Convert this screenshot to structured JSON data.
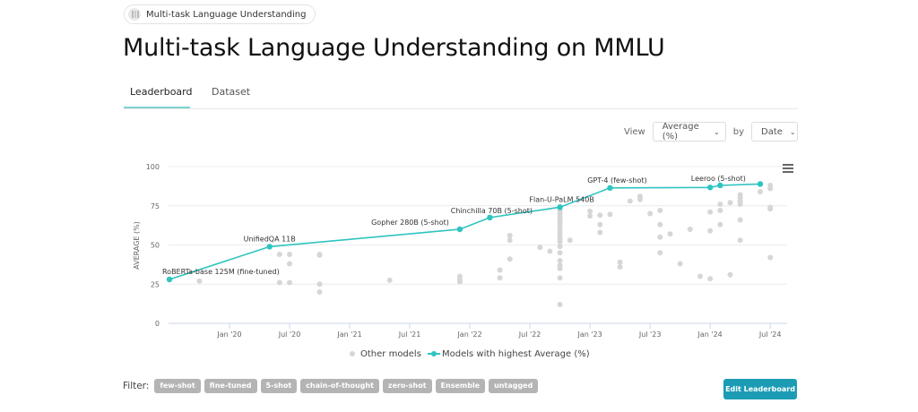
{
  "breadcrumb": {
    "label": "Multi-task Language Understanding",
    "icon": "task-thumbnail-icon"
  },
  "page": {
    "title": "Multi-task Language Understanding on MMLU"
  },
  "tabs": [
    {
      "label": "Leaderboard",
      "active": true
    },
    {
      "label": "Dataset",
      "active": false
    }
  ],
  "controls": {
    "view_label": "View",
    "view_value": "Average (%)",
    "by_label": "by",
    "by_value": "Date"
  },
  "legend": {
    "other": "Other models",
    "best": "Models with highest Average (%)"
  },
  "filter": {
    "label": "Filter:",
    "tags": [
      "few-shot",
      "fine-tuned",
      "5-shot",
      "chain-of-thought",
      "zero-shot",
      "Ensemble",
      "untagged"
    ]
  },
  "actions": {
    "edit_label": "Edit Leaderboard"
  },
  "colors": {
    "accent": "#2ec4c0",
    "other_points": "#d6d6d6",
    "button": "#1c9cb4",
    "tag": "#b4b4b4"
  },
  "chart_data": {
    "type": "scatter",
    "title": "",
    "xlabel": "",
    "ylabel": "AVERAGE (%)",
    "ylim": [
      0,
      100
    ],
    "yticks": [
      0,
      25,
      50,
      75,
      100
    ],
    "xticks": [
      "Jan '20",
      "Jul '20",
      "Jan '21",
      "Jul '21",
      "Jan '22",
      "Jul '22",
      "Jan '23",
      "Jul '23",
      "Jan '24",
      "Jul '24"
    ],
    "grid": true,
    "legend_position": "bottom",
    "series": [
      {
        "name": "Models with highest Average (%)",
        "kind": "line+markers",
        "points": [
          {
            "date": "2019-07",
            "value": 28.0,
            "label": "RoBERTa-base 125M (fine-tuned)"
          },
          {
            "date": "2020-05",
            "value": 48.9,
            "label": "UnifiedQA 11B"
          },
          {
            "date": "2021-12",
            "value": 60.0,
            "label": "Gopher 280B (5-shot)"
          },
          {
            "date": "2022-03",
            "value": 67.5,
            "label": "Chinchilla 70B (5-shot)"
          },
          {
            "date": "2022-10",
            "value": 74.1,
            "label": "Flan-U-PaLM 540B"
          },
          {
            "date": "2023-03",
            "value": 86.4,
            "label": "GPT-4 (few-shot)"
          },
          {
            "date": "2024-01",
            "value": 86.7,
            "label": ""
          },
          {
            "date": "2024-02",
            "value": 88.0,
            "label": "Leeroo (5-shot)"
          },
          {
            "date": "2024-06",
            "value": 88.9,
            "label": ""
          }
        ]
      },
      {
        "name": "Other models",
        "kind": "markers",
        "points": [
          {
            "date": "2019-10",
            "value": 27.0
          },
          {
            "date": "2020-06",
            "value": 44.0
          },
          {
            "date": "2020-06",
            "value": 26.0
          },
          {
            "date": "2020-07",
            "value": 44.0
          },
          {
            "date": "2020-07",
            "value": 38.0
          },
          {
            "date": "2020-07",
            "value": 26.0
          },
          {
            "date": "2020-10",
            "value": 44.0
          },
          {
            "date": "2020-10",
            "value": 43.5
          },
          {
            "date": "2020-10",
            "value": 25.0
          },
          {
            "date": "2020-10",
            "value": 20.0
          },
          {
            "date": "2021-05",
            "value": 27.5
          },
          {
            "date": "2021-12",
            "value": 30.0
          },
          {
            "date": "2021-12",
            "value": 28.0
          },
          {
            "date": "2021-12",
            "value": 26.5
          },
          {
            "date": "2022-04",
            "value": 34.0
          },
          {
            "date": "2022-04",
            "value": 29.0
          },
          {
            "date": "2022-05",
            "value": 56.0
          },
          {
            "date": "2022-05",
            "value": 53.0
          },
          {
            "date": "2022-05",
            "value": 41.0
          },
          {
            "date": "2022-08",
            "value": 48.5
          },
          {
            "date": "2022-10",
            "value": 72.0
          },
          {
            "date": "2022-10",
            "value": 70.0
          },
          {
            "date": "2022-10",
            "value": 68.0
          },
          {
            "date": "2022-10",
            "value": 66.0
          },
          {
            "date": "2022-10",
            "value": 64.0
          },
          {
            "date": "2022-10",
            "value": 62.0
          },
          {
            "date": "2022-10",
            "value": 60.0
          },
          {
            "date": "2022-10",
            "value": 58.0
          },
          {
            "date": "2022-10",
            "value": 56.0
          },
          {
            "date": "2022-10",
            "value": 54.0
          },
          {
            "date": "2022-10",
            "value": 52.0
          },
          {
            "date": "2022-10",
            "value": 49.0
          },
          {
            "date": "2022-10",
            "value": 45.0
          },
          {
            "date": "2022-10",
            "value": 40.0
          },
          {
            "date": "2022-10",
            "value": 37.0
          },
          {
            "date": "2022-10",
            "value": 35.0
          },
          {
            "date": "2022-10",
            "value": 29.0
          },
          {
            "date": "2022-10",
            "value": 12.0
          },
          {
            "date": "2022-09",
            "value": 46.0
          },
          {
            "date": "2022-11",
            "value": 53.0
          },
          {
            "date": "2023-01",
            "value": 71.5
          },
          {
            "date": "2023-01",
            "value": 68.5
          },
          {
            "date": "2023-02",
            "value": 69.0
          },
          {
            "date": "2023-02",
            "value": 63.0
          },
          {
            "date": "2023-02",
            "value": 58.0
          },
          {
            "date": "2023-03",
            "value": 69.5
          },
          {
            "date": "2023-04",
            "value": 39.0
          },
          {
            "date": "2023-04",
            "value": 36.0
          },
          {
            "date": "2023-05",
            "value": 78.0
          },
          {
            "date": "2023-06",
            "value": 81.0
          },
          {
            "date": "2023-06",
            "value": 79.0
          },
          {
            "date": "2023-07",
            "value": 70.0
          },
          {
            "date": "2023-08",
            "value": 72.0
          },
          {
            "date": "2023-08",
            "value": 63.0
          },
          {
            "date": "2023-08",
            "value": 55.0
          },
          {
            "date": "2023-08",
            "value": 45.0
          },
          {
            "date": "2023-09",
            "value": 57.0
          },
          {
            "date": "2023-10",
            "value": 38.0
          },
          {
            "date": "2023-11",
            "value": 60.0
          },
          {
            "date": "2023-12",
            "value": 30.0
          },
          {
            "date": "2024-01",
            "value": 71.0
          },
          {
            "date": "2024-01",
            "value": 59.0
          },
          {
            "date": "2024-01",
            "value": 28.5
          },
          {
            "date": "2024-02",
            "value": 76.0
          },
          {
            "date": "2024-02",
            "value": 72.0
          },
          {
            "date": "2024-02",
            "value": 63.0
          },
          {
            "date": "2024-03",
            "value": 77.0
          },
          {
            "date": "2024-03",
            "value": 31.0
          },
          {
            "date": "2024-04",
            "value": 78.0
          },
          {
            "date": "2024-04",
            "value": 82.0
          },
          {
            "date": "2024-04",
            "value": 80.0
          },
          {
            "date": "2024-04",
            "value": 78.0
          },
          {
            "date": "2024-04",
            "value": 76.0
          },
          {
            "date": "2024-04",
            "value": 66.0
          },
          {
            "date": "2024-04",
            "value": 53.0
          },
          {
            "date": "2024-06",
            "value": 84.0
          },
          {
            "date": "2024-07",
            "value": 88.0
          },
          {
            "date": "2024-07",
            "value": 86.0
          },
          {
            "date": "2024-07",
            "value": 74.0
          },
          {
            "date": "2024-07",
            "value": 73.0
          },
          {
            "date": "2024-07",
            "value": 42.0
          }
        ]
      }
    ]
  }
}
